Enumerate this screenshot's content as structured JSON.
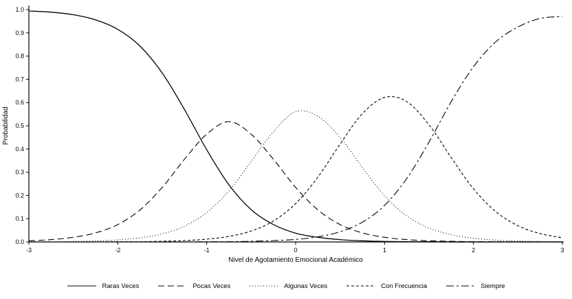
{
  "chart_data": {
    "type": "line",
    "title": "",
    "xlabel": "Nivel de Agotamiento Emocional Académico",
    "ylabel": "Probabilidad",
    "xlim": [
      -3,
      3
    ],
    "ylim": [
      0,
      1
    ],
    "x_ticks": [
      -3,
      -2,
      -1,
      0,
      1,
      2,
      3
    ],
    "y_ticks": [
      0.0,
      0.1,
      0.2,
      0.3,
      0.4,
      0.5,
      0.6,
      0.7,
      0.8,
      0.9,
      1.0
    ],
    "grid": false,
    "legend_position": "bottom",
    "line_color": "#000000",
    "background": "#ffffff",
    "x": [
      -3,
      -2.75,
      -2.5,
      -2.25,
      -2,
      -1.75,
      -1.5,
      -1.25,
      -1,
      -0.75,
      -0.5,
      -0.25,
      0,
      0.25,
      0.5,
      0.75,
      1,
      1.25,
      1.5,
      1.75,
      2,
      2.25,
      2.5,
      2.75,
      3
    ],
    "series": [
      {
        "name": "Raras Veces",
        "style": "solid",
        "values": [
          0.994,
          0.989,
          0.978,
          0.956,
          0.915,
          0.843,
          0.727,
          0.57,
          0.397,
          0.246,
          0.139,
          0.075,
          0.038,
          0.02,
          0.01,
          0.005,
          0.002,
          0.001,
          0.001,
          0.0,
          0.0,
          0.0,
          0.0,
          0.0,
          0.0
        ]
      },
      {
        "name": "Pocas Veces",
        "style": "long-dash",
        "values": [
          0.005,
          0.01,
          0.02,
          0.039,
          0.075,
          0.138,
          0.235,
          0.356,
          0.464,
          0.518,
          0.464,
          0.356,
          0.235,
          0.138,
          0.075,
          0.039,
          0.02,
          0.01,
          0.005,
          0.003,
          0.001,
          0.001,
          0.0,
          0.0,
          0.0
        ]
      },
      {
        "name": "Algunas Veces",
        "style": "dotted",
        "values": [
          0.001,
          0.001,
          0.002,
          0.004,
          0.009,
          0.018,
          0.035,
          0.068,
          0.127,
          0.22,
          0.346,
          0.474,
          0.561,
          0.541,
          0.45,
          0.32,
          0.199,
          0.112,
          0.06,
          0.031,
          0.016,
          0.008,
          0.004,
          0.002,
          0.001
        ]
      },
      {
        "name": "Con Frecuencia",
        "style": "short-dash",
        "values": [
          0.0,
          0.0,
          0.0,
          0.0,
          0.001,
          0.001,
          0.003,
          0.006,
          0.012,
          0.024,
          0.047,
          0.09,
          0.165,
          0.279,
          0.421,
          0.552,
          0.622,
          0.604,
          0.504,
          0.363,
          0.229,
          0.131,
          0.07,
          0.036,
          0.018
        ]
      },
      {
        "name": "Siempre",
        "style": "dash-dot",
        "values": [
          0.0,
          0.0,
          0.0,
          0.0,
          0.0,
          0.0,
          0.0,
          0.0,
          0.001,
          0.001,
          0.003,
          0.006,
          0.011,
          0.022,
          0.044,
          0.085,
          0.157,
          0.273,
          0.43,
          0.604,
          0.754,
          0.861,
          0.925,
          0.962,
          0.97
        ]
      }
    ]
  }
}
